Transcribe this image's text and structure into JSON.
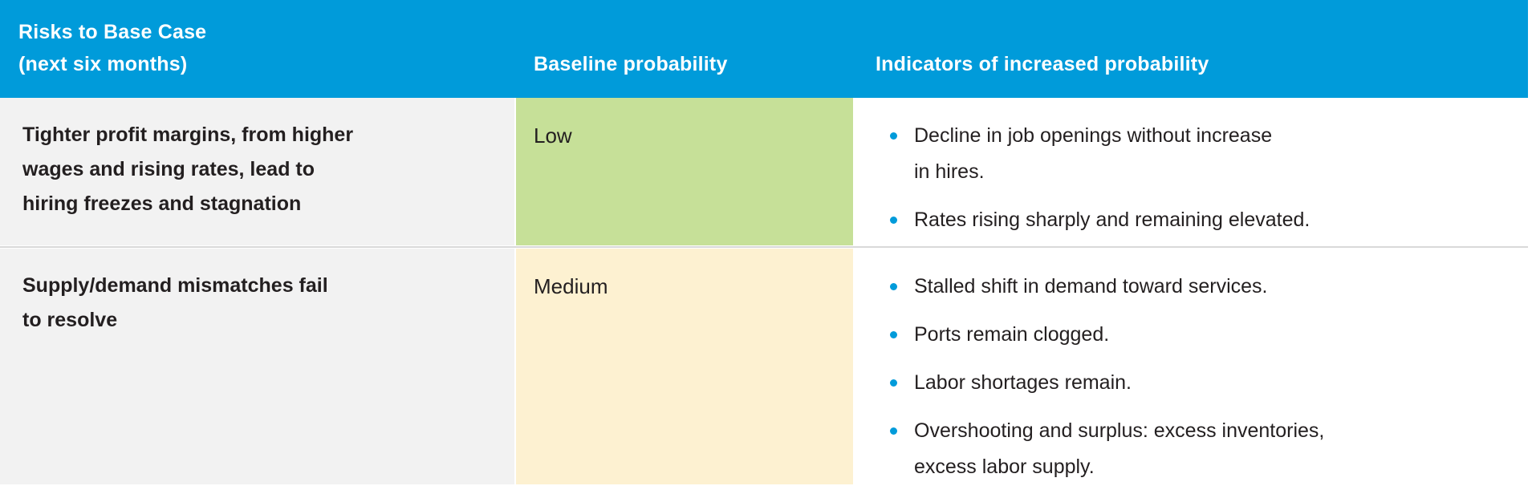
{
  "colors": {
    "header_bg": "#009bda",
    "header_text": "#ffffff",
    "risk_cell_bg": "#f2f2f2",
    "low_bg": "#c6e098",
    "medium_bg": "#fdf1d1",
    "indicator_bg": "#ffffff",
    "bullet_dot": "#009bda",
    "body_text": "#231f20",
    "row_divider": "#d9d9d9"
  },
  "header": {
    "risk_label": "Risks to Base Case\n(next six months)",
    "probability_label": "Baseline probability",
    "indicators_label": "Indicators of increased probability"
  },
  "rows": [
    {
      "risk": "Tighter profit margins, from higher\nwages and rising rates, lead to\nhiring freezes and stagnation",
      "probability": "Low",
      "probability_level": "low",
      "indicators": [
        "Decline in job openings without increase\nin hires.",
        "Rates rising sharply and remaining elevated."
      ]
    },
    {
      "risk": "Supply/demand mismatches fail\nto resolve",
      "probability": "Medium",
      "probability_level": "medium",
      "indicators": [
        "Stalled shift in demand toward services.",
        "Ports remain clogged.",
        "Labor shortages remain.",
        "Overshooting and surplus: excess inventories,\nexcess labor supply."
      ]
    }
  ]
}
